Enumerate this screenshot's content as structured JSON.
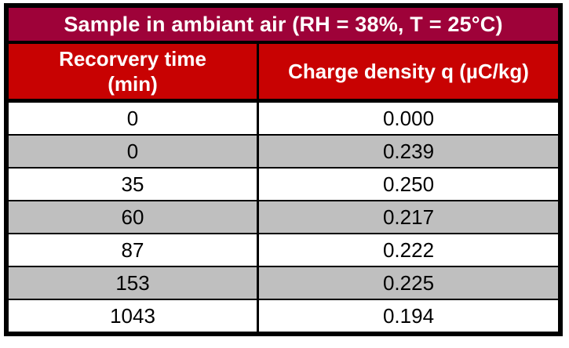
{
  "table": {
    "title": "Sample in ambiant air (RH = 38%, T = 25°C)",
    "header": {
      "col1_line1": "Recorvery time",
      "col1_line2": "(min)",
      "col2": "Charge density q (µC/kg)"
    },
    "rows": [
      [
        "0",
        "0.000"
      ],
      [
        "0",
        "0.239"
      ],
      [
        "35",
        "0.250"
      ],
      [
        "60",
        "0.217"
      ],
      [
        "87",
        "0.222"
      ],
      [
        "153",
        "0.225"
      ],
      [
        "1043",
        "0.194"
      ]
    ],
    "colors": {
      "title_bg": "#9E0239",
      "header_bg": "#C80202",
      "header_text": "#FFFFFF",
      "row_bg": "#FFFFFF",
      "row_alt_bg": "#BFBFBF",
      "border": "#000000"
    }
  },
  "chart_data": {
    "type": "table",
    "title": "Sample in ambiant air (RH = 38%, T = 25°C)",
    "columns": [
      "Recorvery time (min)",
      "Charge density q (µC/kg)"
    ],
    "recovery_time_min": [
      0,
      0,
      35,
      60,
      87,
      153,
      1043
    ],
    "charge_density_uC_per_kg": [
      0.0,
      0.239,
      0.25,
      0.217,
      0.222,
      0.225,
      0.194
    ]
  }
}
